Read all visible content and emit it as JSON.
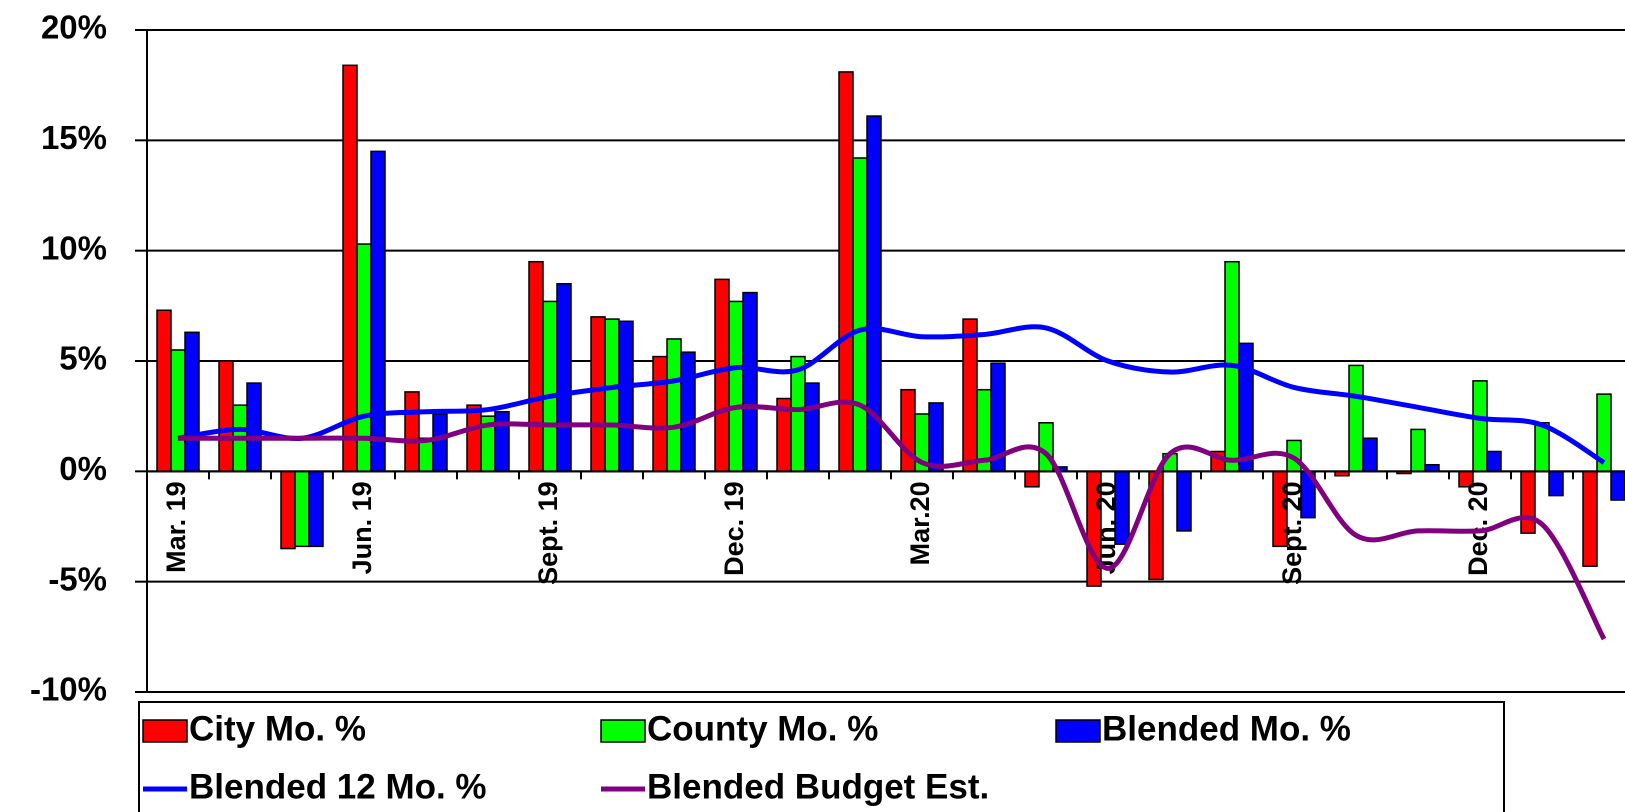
{
  "chart_data": {
    "type": "bar",
    "categories": [
      "Mar. 19",
      null,
      null,
      "Jun. 19",
      null,
      null,
      "Sept. 19",
      null,
      null,
      "Dec. 19",
      null,
      null,
      "Mar.20",
      null,
      null,
      "Jun. 20",
      null,
      null,
      "Sept. 20",
      null,
      null,
      "Dec. 20",
      null,
      null
    ],
    "series": [
      {
        "name": "City Mo. %",
        "color": "#ff0000",
        "values": [
          7.3,
          5.0,
          -3.5,
          18.4,
          3.6,
          3.0,
          9.5,
          7.0,
          5.2,
          8.7,
          3.3,
          18.1,
          3.7,
          6.9,
          -0.7,
          -5.2,
          -4.9,
          0.9,
          -3.4,
          -0.2,
          -0.1,
          -0.7,
          -2.8,
          -4.3
        ]
      },
      {
        "name": "County Mo. %",
        "color": "#00ff00",
        "values": [
          5.5,
          3.0,
          -3.4,
          10.3,
          1.5,
          2.5,
          7.7,
          6.9,
          6.0,
          7.7,
          5.2,
          14.2,
          2.6,
          3.7,
          2.2,
          0,
          0.8,
          9.5,
          1.4,
          4.8,
          1.9,
          4.1,
          2.2,
          3.5
        ]
      },
      {
        "name": "Blended Mo. %",
        "color": "#0000ff",
        "values": [
          6.3,
          4.0,
          -3.4,
          14.5,
          2.6,
          2.7,
          8.5,
          6.8,
          5.4,
          8.1,
          4.0,
          16.1,
          3.1,
          4.9,
          0.2,
          -3.3,
          -2.7,
          5.8,
          -2.1,
          1.5,
          0.3,
          0.9,
          -1.1,
          -1.3
        ]
      },
      {
        "name": "Blended 12 Mo. %",
        "color": "#0000ff",
        "type": "line",
        "values": [
          1.5,
          1.9,
          1.5,
          2.5,
          2.7,
          2.8,
          3.4,
          3.8,
          4.1,
          4.7,
          4.6,
          6.4,
          6.1,
          6.2,
          6.5,
          5.0,
          4.5,
          4.8,
          3.8,
          3.4,
          2.9,
          2.4,
          2.1,
          0.4
        ]
      },
      {
        "name": "Blended Budget Est.",
        "color": "#800080",
        "type": "line",
        "values": [
          1.5,
          1.5,
          1.5,
          1.5,
          1.4,
          2.1,
          2.1,
          2.1,
          2.0,
          2.9,
          2.8,
          3.0,
          0.4,
          0.5,
          0.8,
          -4.4,
          0.8,
          0.5,
          0.6,
          -2.9,
          -2.7,
          -2.7,
          -2.4,
          -7.6
        ]
      }
    ],
    "ylim": [
      -10,
      20
    ],
    "yticks": [
      {
        "value": -10,
        "label": "-10%"
      },
      {
        "value": -5,
        "label": "-5%"
      },
      {
        "value": 0,
        "label": "0%"
      },
      {
        "value": 5,
        "label": "5%"
      },
      {
        "value": 10,
        "label": "10%"
      },
      {
        "value": 15,
        "label": "15%"
      },
      {
        "value": 20,
        "label": "20%"
      }
    ],
    "grid": true,
    "legend": "bottom"
  }
}
